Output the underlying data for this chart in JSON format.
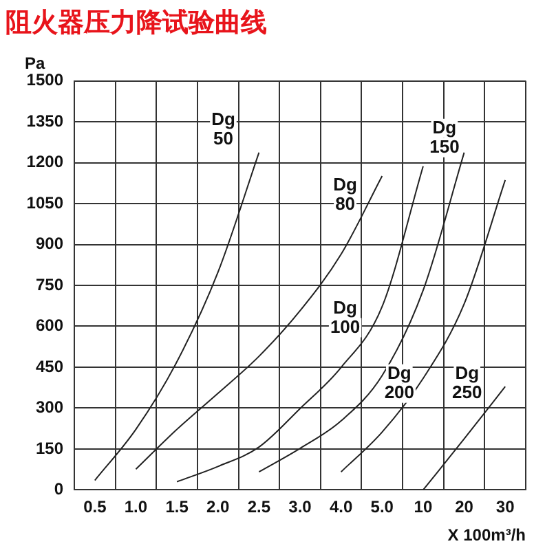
{
  "chart_data": {
    "type": "line",
    "title": "阻火器压力降试验曲线",
    "ylabel": "Pa",
    "xlabel": "X 100m³/h",
    "categories": [
      "0.5",
      "1.0",
      "1.5",
      "2.0",
      "2.5",
      "3.0",
      "4.0",
      "5.0",
      "10",
      "20",
      "30"
    ],
    "series": [
      {
        "color": "#222222",
        "values": [
          35,
          222,
          470,
          798,
          1237,
          null,
          null,
          null,
          null,
          null,
          null
        ]
      },
      {
        "color": "#222222",
        "values": [
          null,
          76,
          222,
          354,
          490,
          657,
          864,
          1151,
          null,
          null,
          null
        ]
      },
      {
        "color": "#222222",
        "values": [
          null,
          null,
          30,
          86,
          157,
          298,
          449,
          672,
          1187,
          null,
          null
        ]
      },
      {
        "color": "#222222",
        "values": [
          null,
          null,
          null,
          null,
          66,
          152,
          253,
          419,
          732,
          1237,
          null
        ]
      },
      {
        "color": "#222222",
        "values": [
          null,
          null,
          null,
          null,
          null,
          null,
          66,
          212,
          409,
          682,
          1136
        ]
      },
      {
        "color": "#222222",
        "values": [
          null,
          null,
          null,
          null,
          null,
          null,
          null,
          null,
          0,
          187,
          379
        ]
      }
    ],
    "annotations": [
      "Dg 50",
      "Dg 80",
      "Dg 100",
      "Dg 150",
      "Dg 200",
      "Dg 250"
    ],
    "ylim": [
      0,
      1500
    ],
    "yticks": [
      0,
      150,
      300,
      450,
      600,
      750,
      900,
      1050,
      1200,
      1350,
      1500
    ],
    "grid": true,
    "legend": false,
    "marker": "none",
    "line_style": "solid"
  }
}
